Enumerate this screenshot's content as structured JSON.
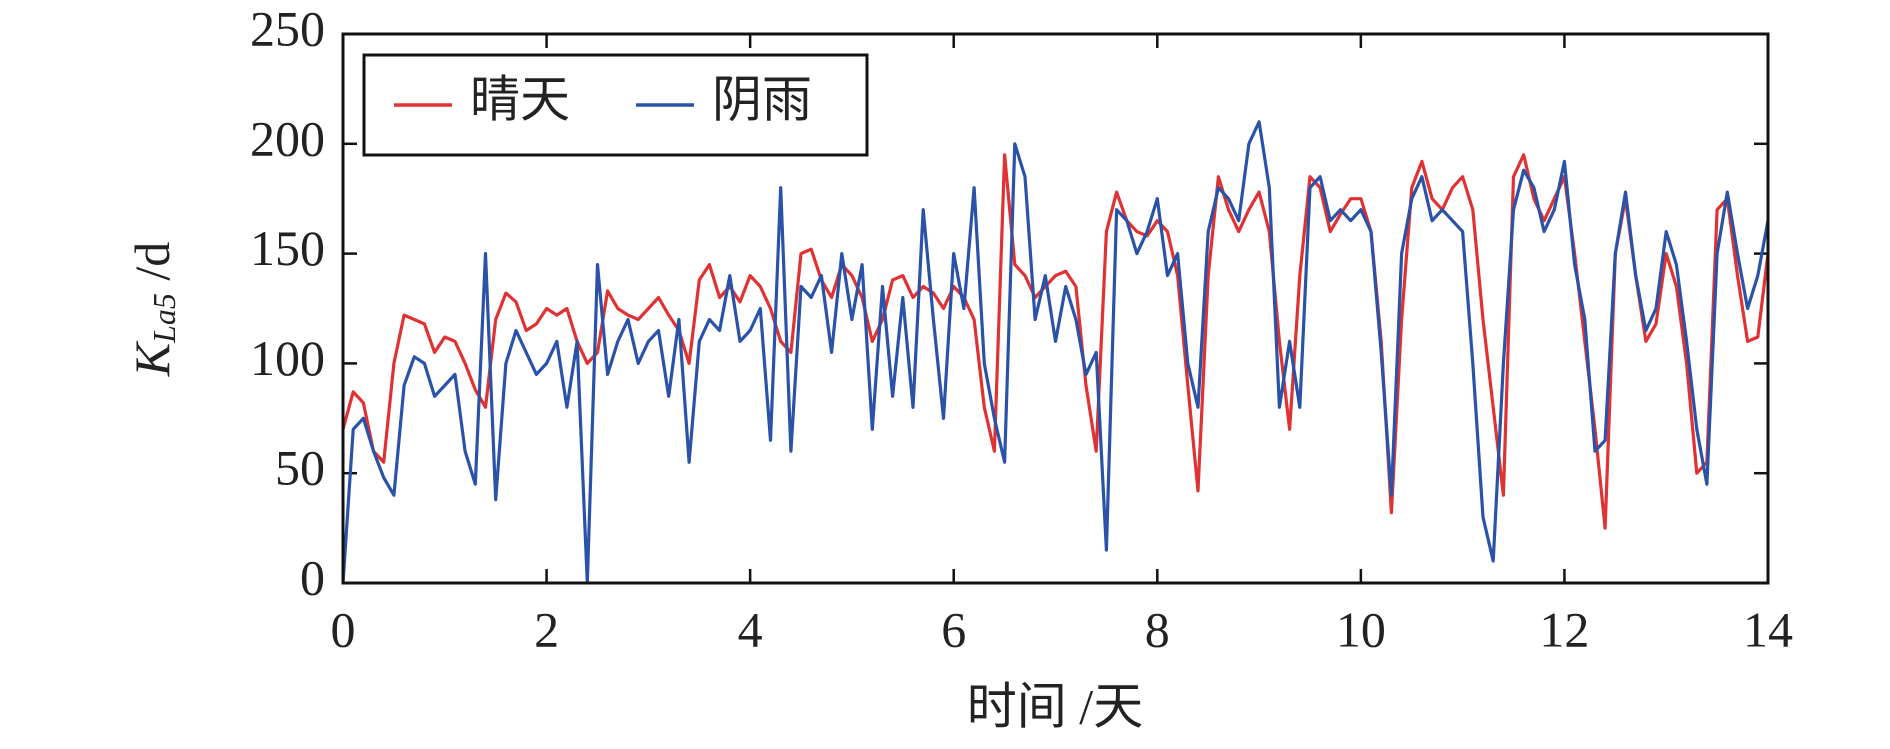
{
  "chart_data": {
    "type": "line",
    "xlabel": "时间 /天",
    "ylabel": [
      "K",
      "La5",
      " /d"
    ],
    "xlim": [
      0,
      14
    ],
    "xticks": [
      0,
      2,
      4,
      6,
      8,
      10,
      12,
      14
    ],
    "ylim": [
      0,
      250
    ],
    "yticks": [
      0,
      50,
      100,
      150,
      200,
      250
    ],
    "legend": "upper left",
    "x": [
      0,
      0.1,
      0.2,
      0.3,
      0.4,
      0.5,
      0.6,
      0.7,
      0.8,
      0.9,
      1,
      1.1,
      1.2,
      1.3,
      1.4,
      1.5,
      1.6,
      1.7,
      1.8,
      1.9,
      2,
      2.1,
      2.2,
      2.3,
      2.4,
      2.5,
      2.6,
      2.7,
      2.8,
      2.9,
      3,
      3.1,
      3.2,
      3.3,
      3.4,
      3.5,
      3.6,
      3.7,
      3.8,
      3.9,
      4,
      4.1,
      4.2,
      4.3,
      4.4,
      4.5,
      4.6,
      4.7,
      4.8,
      4.9,
      5,
      5.1,
      5.2,
      5.3,
      5.4,
      5.5,
      5.6,
      5.7,
      5.8,
      5.9,
      6,
      6.1,
      6.2,
      6.3,
      6.4,
      6.5,
      6.6,
      6.7,
      6.8,
      6.9,
      7,
      7.1,
      7.2,
      7.3,
      7.4,
      7.5,
      7.6,
      7.7,
      7.8,
      7.9,
      8,
      8.1,
      8.2,
      8.3,
      8.4,
      8.5,
      8.6,
      8.7,
      8.8,
      8.9,
      9,
      9.1,
      9.2,
      9.3,
      9.4,
      9.5,
      9.6,
      9.7,
      9.8,
      9.9,
      10,
      10.1,
      10.2,
      10.3,
      10.4,
      10.5,
      10.6,
      10.7,
      10.8,
      10.9,
      11,
      11.1,
      11.2,
      11.3,
      11.4,
      11.5,
      11.6,
      11.7,
      11.8,
      11.9,
      12,
      12.1,
      12.2,
      12.3,
      12.4,
      12.5,
      12.6,
      12.7,
      12.8,
      12.9,
      13,
      13.1,
      13.2,
      13.3,
      13.4,
      13.5,
      13.6,
      13.7,
      13.8,
      13.9,
      14
    ],
    "series": [
      {
        "name": "晴天",
        "color": "#e03232",
        "values": [
          70,
          87,
          82,
          60,
          55,
          100,
          122,
          120,
          118,
          105,
          112,
          110,
          100,
          88,
          80,
          120,
          132,
          128,
          115,
          118,
          125,
          122,
          125,
          110,
          100,
          105,
          133,
          125,
          122,
          120,
          125,
          130,
          122,
          115,
          100,
          138,
          145,
          130,
          135,
          128,
          140,
          135,
          125,
          110,
          105,
          150,
          152,
          138,
          130,
          145,
          140,
          130,
          110,
          120,
          138,
          140,
          130,
          135,
          132,
          125,
          135,
          130,
          120,
          80,
          60,
          195,
          145,
          140,
          130,
          135,
          140,
          142,
          135,
          90,
          60,
          160,
          178,
          165,
          160,
          158,
          165,
          160,
          140,
          90,
          42,
          140,
          185,
          170,
          160,
          170,
          178,
          160,
          110,
          70,
          140,
          185,
          180,
          160,
          168,
          175,
          175,
          160,
          110,
          32,
          120,
          180,
          192,
          175,
          170,
          180,
          185,
          170,
          120,
          80,
          40,
          185,
          195,
          175,
          165,
          175,
          185,
          150,
          110,
          70,
          25,
          150,
          175,
          140,
          110,
          118,
          150,
          135,
          100,
          50,
          55,
          170,
          175,
          140,
          110,
          112,
          150
        ]
      },
      {
        "name": "阴雨",
        "color": "#2a52a8",
        "values": [
          0,
          70,
          75,
          60,
          48,
          40,
          90,
          103,
          100,
          85,
          90,
          95,
          60,
          45,
          150,
          38,
          100,
          115,
          105,
          95,
          100,
          110,
          80,
          110,
          0,
          145,
          95,
          110,
          120,
          100,
          110,
          115,
          85,
          120,
          55,
          110,
          120,
          115,
          140,
          110,
          115,
          125,
          65,
          180,
          60,
          135,
          130,
          140,
          105,
          150,
          120,
          145,
          70,
          135,
          85,
          130,
          80,
          170,
          120,
          75,
          150,
          125,
          180,
          100,
          75,
          55,
          200,
          185,
          120,
          140,
          110,
          135,
          120,
          95,
          105,
          15,
          170,
          165,
          150,
          160,
          175,
          140,
          150,
          100,
          80,
          160,
          180,
          175,
          165,
          200,
          210,
          180,
          80,
          110,
          80,
          180,
          185,
          165,
          170,
          165,
          170,
          160,
          105,
          40,
          150,
          175,
          185,
          165,
          170,
          165,
          160,
          100,
          30,
          10,
          100,
          170,
          188,
          180,
          160,
          170,
          192,
          145,
          120,
          60,
          65,
          150,
          178,
          140,
          115,
          125,
          160,
          145,
          110,
          70,
          45,
          150,
          178,
          150,
          125,
          140,
          165
        ]
      }
    ]
  }
}
